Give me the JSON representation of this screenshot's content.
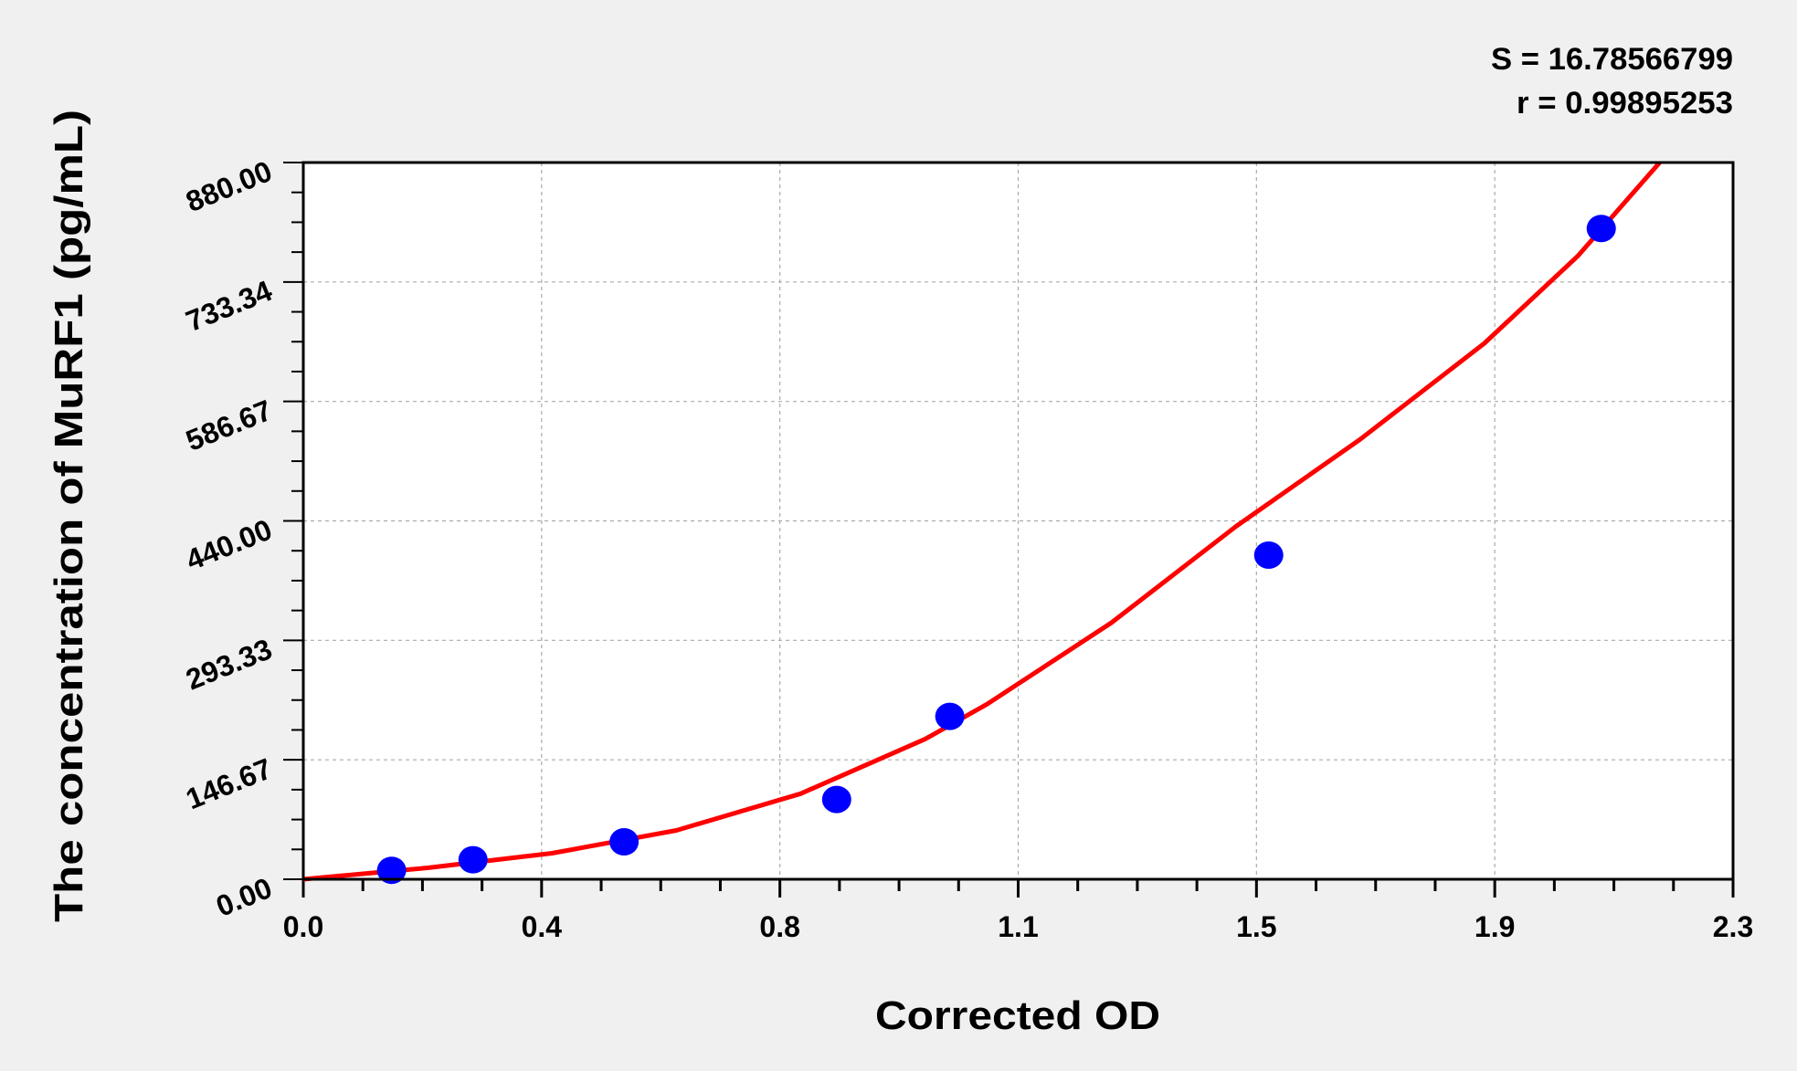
{
  "chart_data": {
    "type": "scatter",
    "xlabel": "Corrected OD",
    "ylabel": "The concentration of MuRF1 (pg/mL)",
    "xlim": [
      0,
      2.3
    ],
    "ylim": [
      0,
      880
    ],
    "x_ticks": [
      "0.0",
      "0.4",
      "0.8",
      "1.1",
      "1.5",
      "1.9",
      "2.3"
    ],
    "y_ticks": [
      "0.00",
      "146.67",
      "293.33",
      "440.00",
      "586.67",
      "733.34",
      "880.00"
    ],
    "grid": true,
    "annotations": [
      "S = 16.78566799",
      "r = 0.99895253"
    ],
    "series": [
      {
        "type": "scatter",
        "color": "#0000ff",
        "points": [
          [
            0.142,
            11
          ],
          [
            0.273,
            24
          ],
          [
            0.516,
            46
          ],
          [
            0.858,
            98
          ],
          [
            1.04,
            200
          ],
          [
            1.553,
            398
          ],
          [
            2.088,
            799
          ]
        ]
      },
      {
        "type": "line",
        "color": "#ff0000",
        "points": [
          [
            0,
            0
          ],
          [
            0.2,
            14
          ],
          [
            0.4,
            32
          ],
          [
            0.6,
            60
          ],
          [
            0.8,
            105
          ],
          [
            1.0,
            172
          ],
          [
            1.1,
            215
          ],
          [
            1.3,
            315
          ],
          [
            1.5,
            433
          ],
          [
            1.7,
            540
          ],
          [
            1.9,
            658
          ],
          [
            2.05,
            765
          ],
          [
            2.182,
            880
          ]
        ]
      }
    ]
  }
}
